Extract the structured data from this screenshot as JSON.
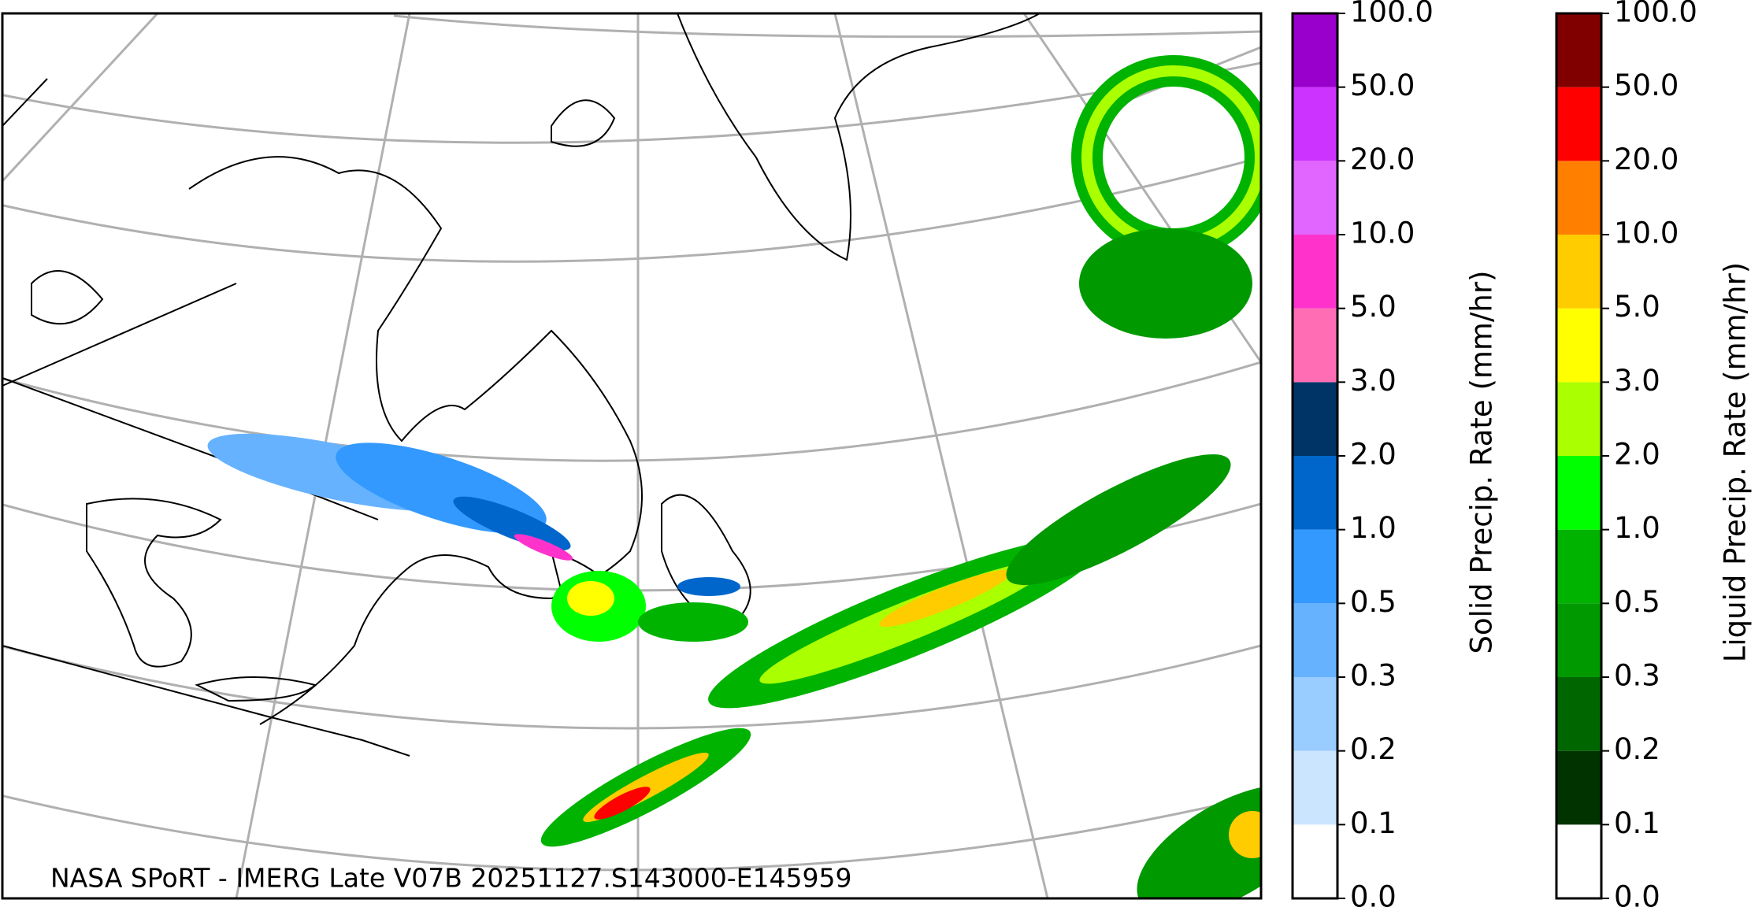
{
  "map": {
    "annotation": "NASA SPoRT - IMERG Late V07B 20251127.S143000-E145959",
    "colorbars": [
      {
        "label": "Solid Precip. Rate (mm/hr)",
        "ticks": [
          {
            "value": 0,
            "label": "0.0"
          },
          {
            "value": 0.1,
            "label": "0.1"
          },
          {
            "value": 0.2,
            "label": "0.2"
          },
          {
            "value": 0.3,
            "label": "0.3"
          },
          {
            "value": 0.5,
            "label": "0.5"
          },
          {
            "value": 1,
            "label": "1.0"
          },
          {
            "value": 2,
            "label": "2.0"
          },
          {
            "value": 3,
            "label": "3.0"
          },
          {
            "value": 5,
            "label": "5.0"
          },
          {
            "value": 10,
            "label": "10.0"
          },
          {
            "value": 20,
            "label": "20.0"
          },
          {
            "value": 50,
            "label": "50.0"
          },
          {
            "value": 100,
            "label": "100.0"
          }
        ],
        "colors": [
          "#ffffff",
          "#cce5ff",
          "#99ccff",
          "#66b2ff",
          "#3399ff",
          "#0066cc",
          "#003366",
          "#ff6eb4",
          "#ff33cc",
          "#e066ff",
          "#cc33ff",
          "#9900cc"
        ]
      },
      {
        "label": "Liquid Precip. Rate (mm/hr)",
        "ticks": [
          {
            "value": 0,
            "label": "0.0"
          },
          {
            "value": 0.1,
            "label": "0.1"
          },
          {
            "value": 0.2,
            "label": "0.2"
          },
          {
            "value": 0.3,
            "label": "0.3"
          },
          {
            "value": 0.5,
            "label": "0.5"
          },
          {
            "value": 1,
            "label": "1.0"
          },
          {
            "value": 2,
            "label": "2.0"
          },
          {
            "value": 3,
            "label": "3.0"
          },
          {
            "value": 5,
            "label": "5.0"
          },
          {
            "value": 10,
            "label": "10.0"
          },
          {
            "value": 20,
            "label": "20.0"
          },
          {
            "value": 50,
            "label": "50.0"
          },
          {
            "value": 100,
            "label": "100.0"
          }
        ],
        "colors": [
          "#ffffff",
          "#003300",
          "#006600",
          "#009900",
          "#00b300",
          "#00ff00",
          "#aaff00",
          "#ffff00",
          "#ffcc00",
          "#ff8000",
          "#ff0000",
          "#800000",
          "#400000"
        ]
      }
    ]
  }
}
